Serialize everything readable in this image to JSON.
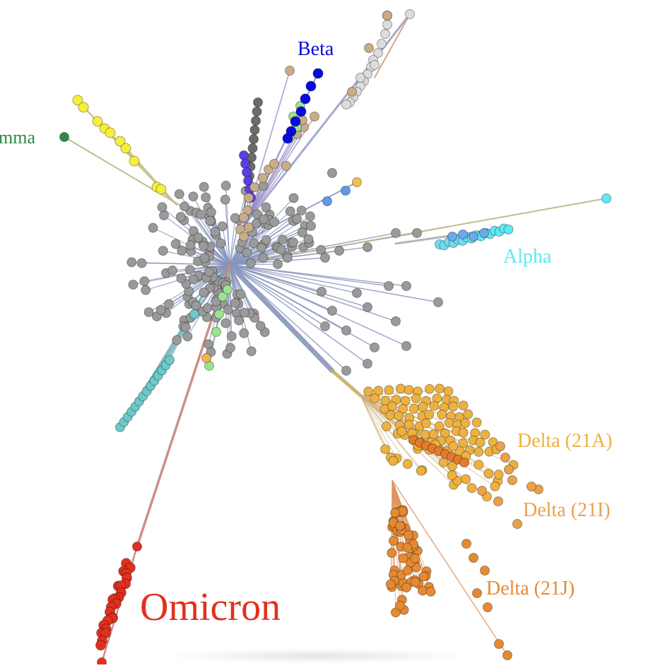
{
  "labels": {
    "gamma": "mma",
    "beta": "Beta",
    "alpha": "Alpha",
    "delta_21a": "Delta (21A)",
    "delta_21i": "Delta (21I)",
    "delta_21j": "Delta (21J)",
    "omicron": "Omicron"
  },
  "colors": {
    "background": "#ffffff",
    "background_lineage": "#9a9a9a",
    "branch_default": "#8895bd",
    "gamma": "#2e8b45",
    "beta": "#0a0ae0",
    "alpha": "#5ee9f5",
    "delta_21a": "#eeb13f",
    "delta_21i": "#e9a14a",
    "delta_21j": "#e58a33",
    "omicron": "#e2301e",
    "yellow_clade": "#f5ef3a",
    "teal_clade": "#6dc9c9",
    "light_grey_clade": "#dcdcdc",
    "tan_clade": "#c9ad88",
    "green_clade": "#9be48f",
    "purple_clade": "#5b3fe0",
    "dark_grey_clade": "#6b6b6b"
  }
}
